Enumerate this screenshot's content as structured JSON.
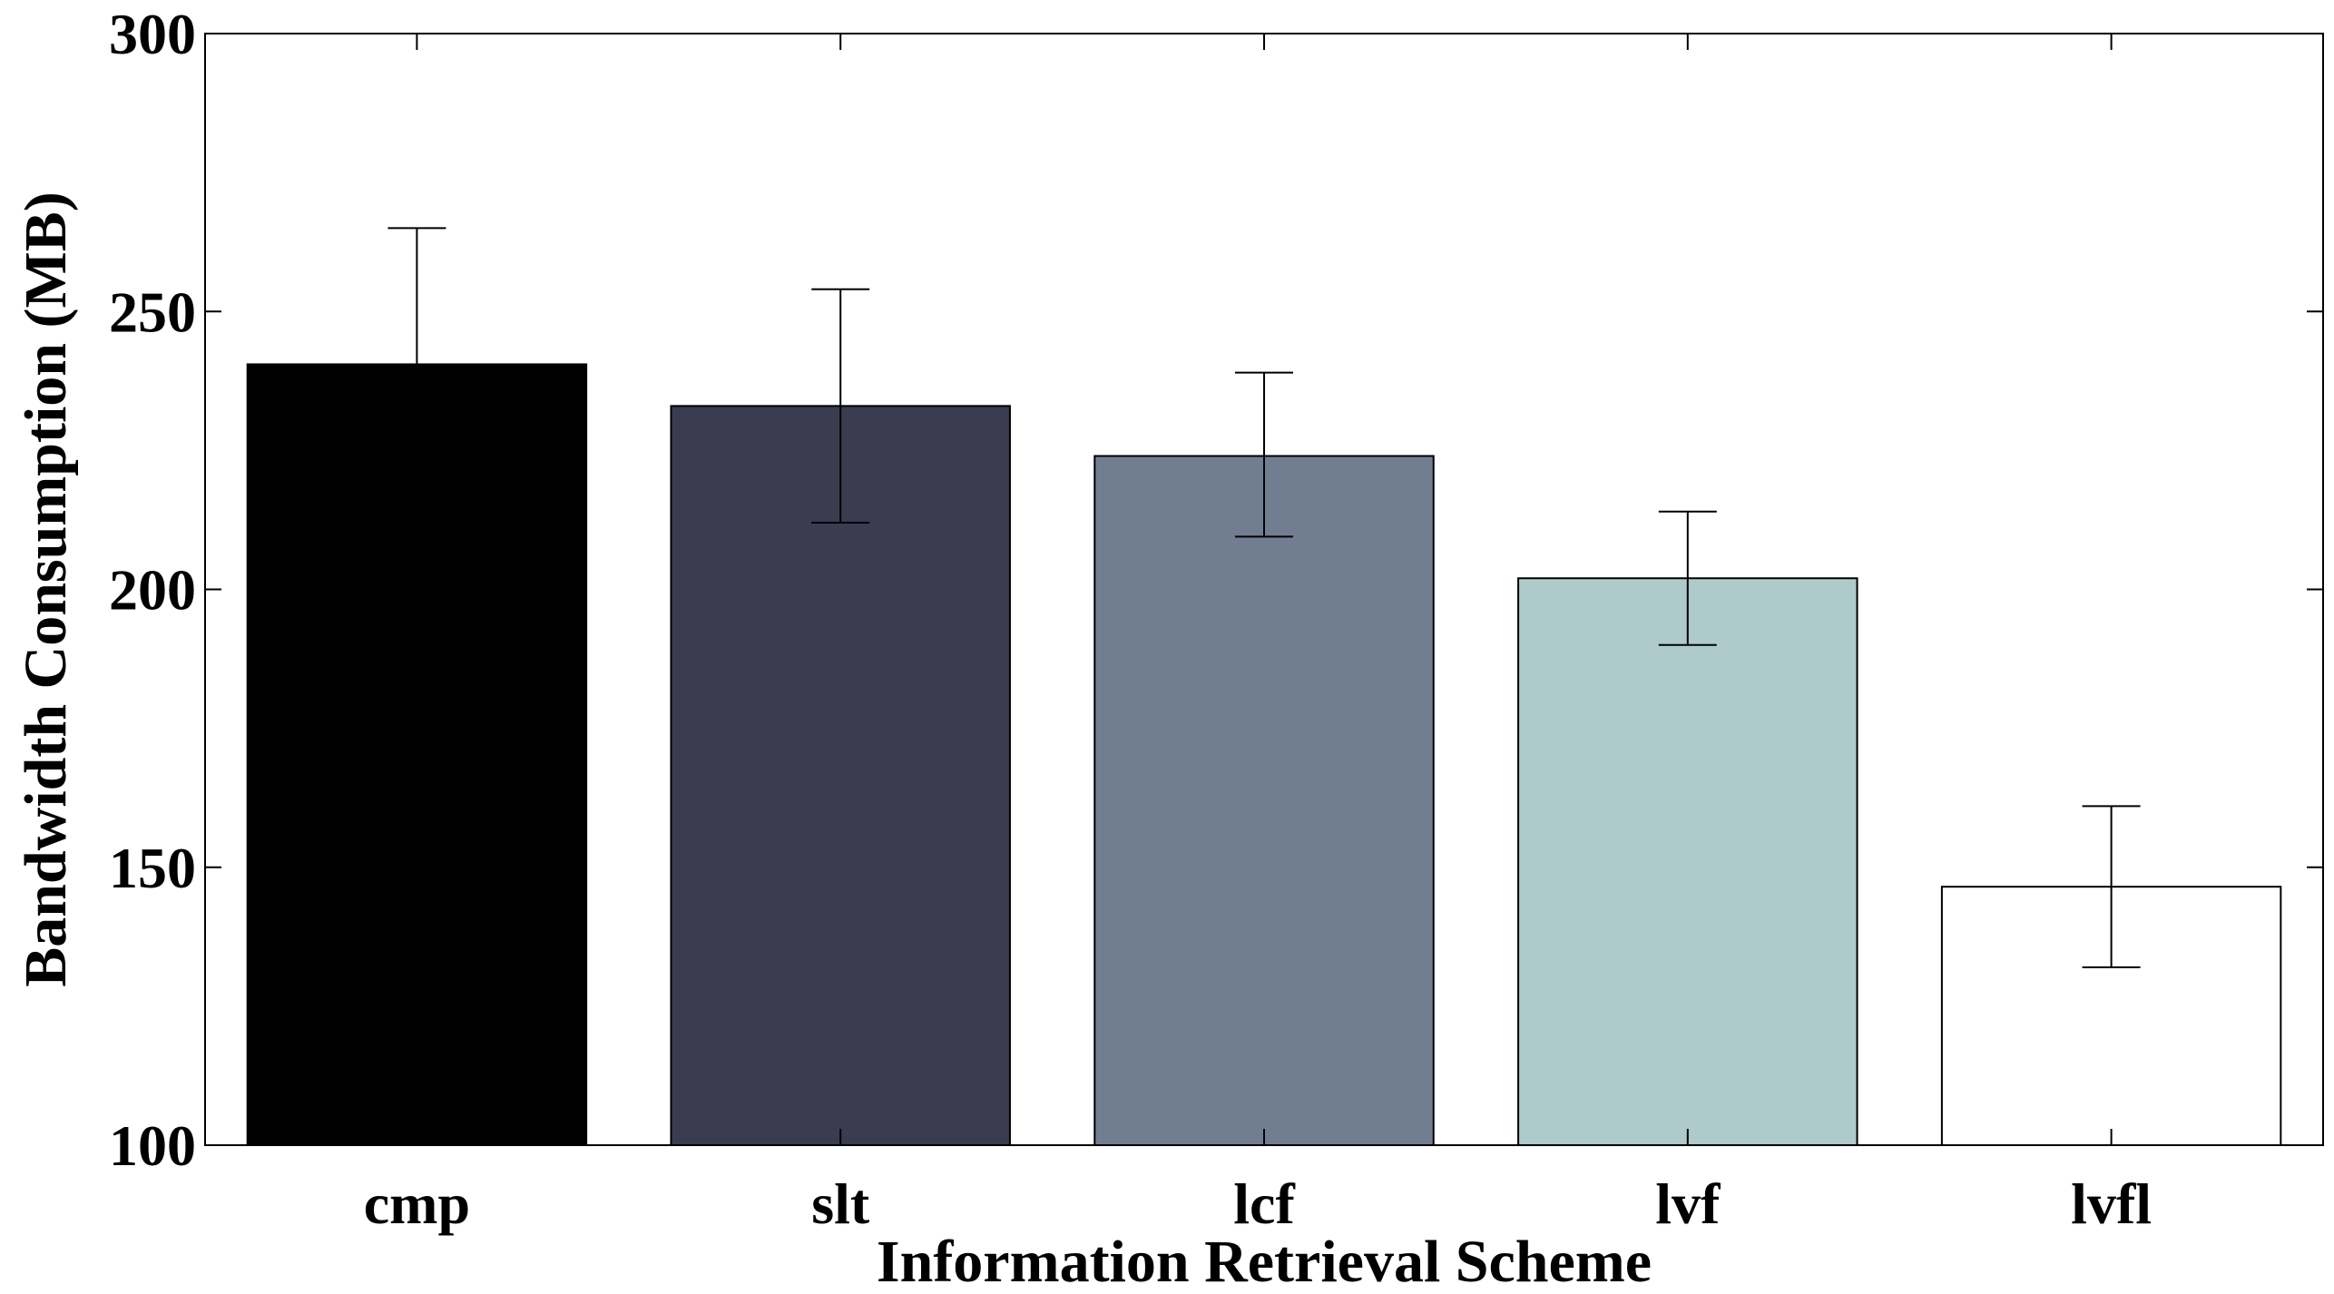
{
  "chart_data": {
    "type": "bar",
    "title": "",
    "xlabel": "Information Retrieval Scheme",
    "ylabel": "Bandwidth Consumption (MB)",
    "ylim": [
      100,
      300
    ],
    "yticks": [
      100,
      150,
      200,
      250,
      300
    ],
    "grid": false,
    "categories": [
      "cmp",
      "slt",
      "lcf",
      "lvf",
      "lvfl"
    ],
    "values": [
      240.5,
      233,
      224,
      202,
      146.5
    ],
    "errors": [
      [
        240.5,
        265
      ],
      [
        212,
        254
      ],
      [
        209.5,
        239
      ],
      [
        190,
        214
      ],
      [
        132,
        161
      ]
    ],
    "colors": [
      "#000000",
      "#3b3c50",
      "#717e92",
      "#aecaca",
      "#ffffff"
    ]
  }
}
